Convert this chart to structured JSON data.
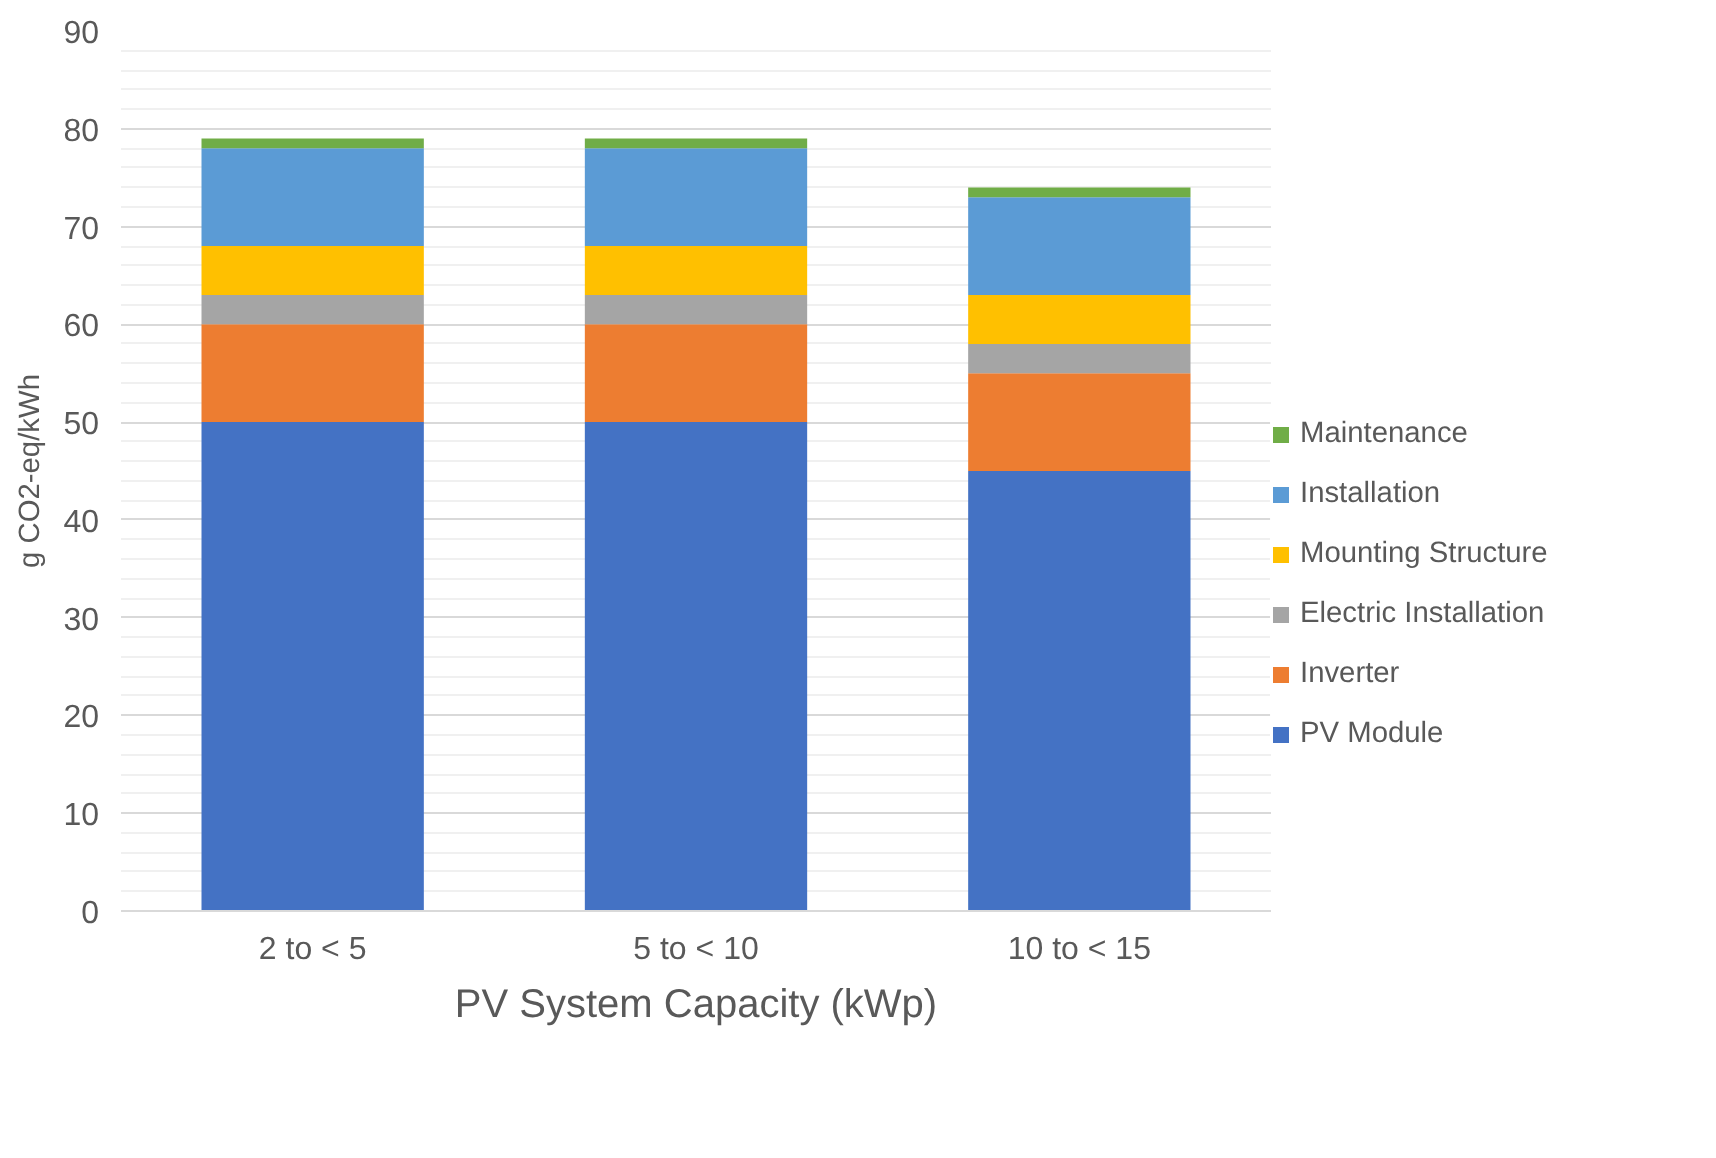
{
  "chart_data": {
    "type": "bar",
    "stacked": true,
    "xlabel": "PV System Capacity (kWp)",
    "ylabel": "g CO2-eq/kWh",
    "categories": [
      "2 to < 5",
      "5 to < 10",
      "10 to < 15"
    ],
    "series": [
      {
        "name": "PV Module",
        "color": "#4472c4",
        "values": [
          50,
          50,
          45
        ]
      },
      {
        "name": "Inverter",
        "color": "#ed7d31",
        "values": [
          10,
          10,
          10
        ]
      },
      {
        "name": "Electric Installation",
        "color": "#a5a5a5",
        "values": [
          3,
          3,
          3
        ]
      },
      {
        "name": "Mounting Structure",
        "color": "#ffc000",
        "values": [
          5,
          5,
          5
        ]
      },
      {
        "name": "Installation",
        "color": "#5b9bd5",
        "values": [
          10,
          10,
          10
        ]
      },
      {
        "name": "Maintenance",
        "color": "#70ad47",
        "values": [
          1,
          1,
          1
        ]
      }
    ],
    "ylim": [
      0,
      90
    ],
    "yticks": [
      0,
      10,
      20,
      30,
      40,
      50,
      60,
      70,
      80,
      90
    ],
    "grid": "y",
    "legend": "right"
  }
}
